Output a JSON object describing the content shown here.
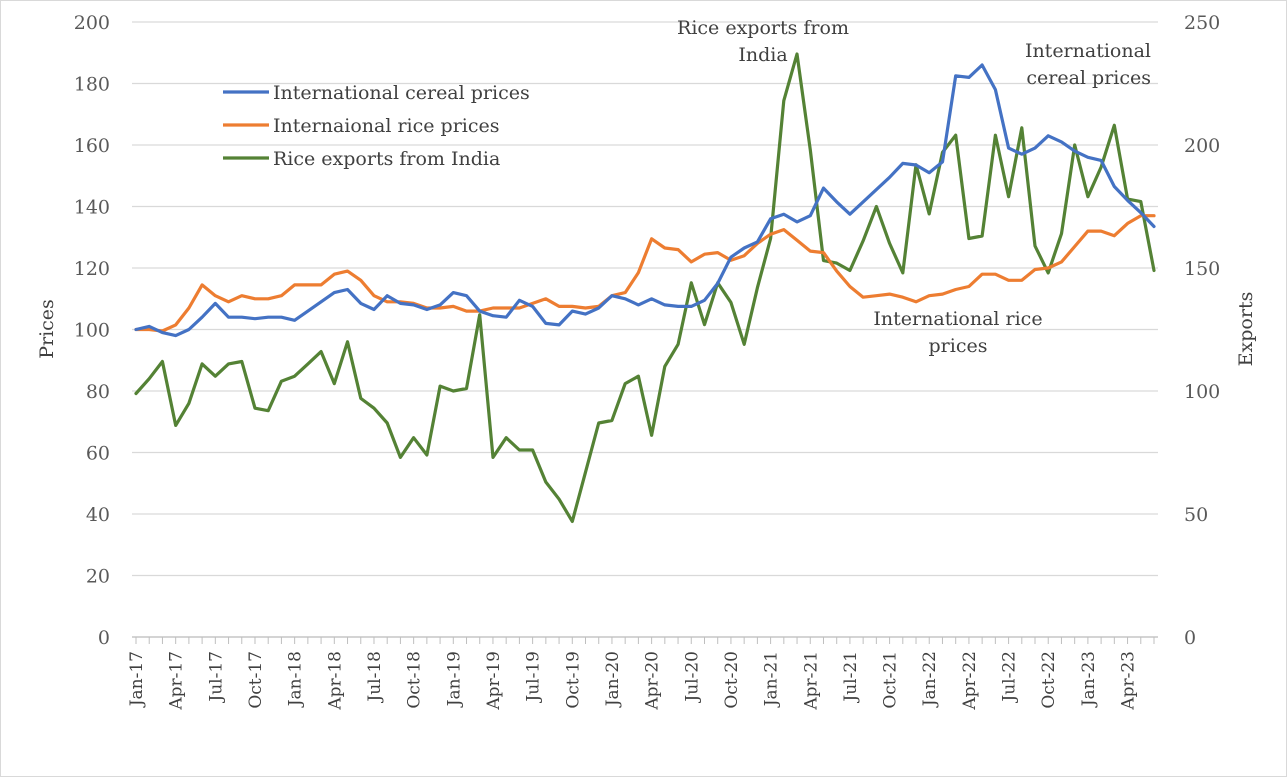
{
  "chart_data": {
    "type": "line",
    "ylabel": "Prices",
    "y2label": "Exports",
    "ylim": [
      0,
      200
    ],
    "y2lim": [
      0,
      250
    ],
    "yticks": [
      "0",
      "20",
      "40",
      "60",
      "80",
      "100",
      "120",
      "140",
      "160",
      "180",
      "200"
    ],
    "y2ticks": [
      "0",
      "50",
      "100",
      "150",
      "200",
      "250"
    ],
    "grid": true,
    "legend_position": "top-left",
    "x": [
      "Jan-17",
      "Feb-17",
      "Mar-17",
      "Apr-17",
      "May-17",
      "Jun-17",
      "Jul-17",
      "Aug-17",
      "Sep-17",
      "Oct-17",
      "Nov-17",
      "Dec-17",
      "Jan-18",
      "Feb-18",
      "Mar-18",
      "Apr-18",
      "May-18",
      "Jun-18",
      "Jul-18",
      "Aug-18",
      "Sep-18",
      "Oct-18",
      "Nov-18",
      "Dec-18",
      "Jan-19",
      "Feb-19",
      "Mar-19",
      "Apr-19",
      "May-19",
      "Jun-19",
      "Jul-19",
      "Aug-19",
      "Sep-19",
      "Oct-19",
      "Nov-19",
      "Dec-19",
      "Jan-20",
      "Feb-20",
      "Mar-20",
      "Apr-20",
      "May-20",
      "Jun-20",
      "Jul-20",
      "Aug-20",
      "Sep-20",
      "Oct-20",
      "Nov-20",
      "Dec-20",
      "Jan-21",
      "Feb-21",
      "Mar-21",
      "Apr-21",
      "May-21",
      "Jun-21",
      "Jul-21",
      "Aug-21",
      "Sep-21",
      "Oct-21",
      "Nov-21",
      "Dec-21",
      "Jan-22",
      "Feb-22",
      "Mar-22",
      "Apr-22",
      "May-22",
      "Jun-22",
      "Jul-22",
      "Aug-22",
      "Sep-22",
      "Oct-22",
      "Nov-22",
      "Dec-22",
      "Jan-23",
      "Feb-23",
      "Mar-23",
      "Apr-23",
      "May-23",
      "Jun-23"
    ],
    "xtick_labels": [
      "Jan-17",
      "Apr-17",
      "Jul-17",
      "Oct-17",
      "Jan-18",
      "Apr-18",
      "Jul-18",
      "Oct-18",
      "Jan-19",
      "Apr-19",
      "Jul-19",
      "Oct-19",
      "Jan-20",
      "Apr-20",
      "Jul-20",
      "Oct-20",
      "Jan-21",
      "Apr-21",
      "Jul-21",
      "Oct-21",
      "Jan-22",
      "Apr-22",
      "Jul-22",
      "Oct-22",
      "Jan-23",
      "Apr-23"
    ],
    "series": [
      {
        "name": "International cereal prices",
        "axis": "left",
        "color": "#4472C4",
        "values": [
          100,
          101,
          99,
          98,
          100,
          104,
          108.5,
          104,
          104,
          103.5,
          104,
          104,
          103,
          106,
          109,
          112,
          113,
          108.5,
          106.5,
          111,
          108.5,
          108,
          106.5,
          108,
          112,
          111,
          106,
          104.5,
          104,
          109.5,
          107.5,
          102,
          101.5,
          106,
          105,
          107,
          111,
          110,
          108,
          110,
          108,
          107.5,
          107.5,
          109.5,
          115,
          123.5,
          126.5,
          128.5,
          136,
          137.5,
          135,
          137,
          146,
          141.5,
          137.5,
          141.5,
          145.5,
          149.5,
          154,
          153.5,
          151,
          154.5,
          182.5,
          182,
          186,
          178,
          159,
          157,
          159,
          163,
          161,
          158,
          156,
          155,
          146.5,
          142,
          138,
          133.5
        ]
      },
      {
        "name": "Internaional rice prices",
        "axis": "left",
        "color": "#ED7D31",
        "values": [
          100,
          100,
          99.5,
          101.5,
          107,
          114.5,
          111,
          109,
          111,
          110,
          110,
          111,
          114.5,
          114.5,
          114.5,
          118,
          119,
          116,
          111,
          109,
          109,
          108.5,
          107,
          107,
          107.5,
          106,
          106,
          107,
          107,
          107,
          108.5,
          110,
          107.5,
          107.5,
          107,
          107.5,
          111,
          112,
          118.5,
          129.5,
          126.5,
          126,
          122,
          124.5,
          125,
          122.5,
          124,
          128,
          131,
          132.5,
          129,
          125.5,
          125,
          119,
          114,
          110.5,
          111,
          111.5,
          110.5,
          109,
          111,
          111.5,
          113,
          114,
          118,
          118,
          116,
          116,
          119.5,
          120,
          122,
          127,
          132,
          132,
          130.5,
          134.5,
          137,
          137
        ]
      },
      {
        "name": "Rice exports from India",
        "axis": "right",
        "color": "#548235",
        "values": [
          99,
          105,
          112,
          86,
          95,
          111,
          106,
          111,
          112,
          93,
          92,
          104,
          106,
          111,
          116,
          103,
          120,
          97,
          93,
          87,
          73,
          81,
          74,
          102,
          100,
          101,
          131,
          73,
          81,
          76,
          76,
          63,
          56,
          47,
          67,
          87,
          88,
          103,
          106,
          82,
          110,
          119,
          144,
          127,
          144,
          136,
          119,
          142,
          162,
          218,
          237,
          198,
          153,
          152,
          149,
          161,
          175,
          160,
          148,
          192,
          172,
          197,
          204,
          162,
          163,
          204,
          179,
          207,
          159,
          148,
          164,
          200,
          179,
          191,
          208,
          178,
          177,
          149
        ]
      }
    ],
    "annotations": [
      {
        "lines": [
          "Rice exports from",
          "India"
        ],
        "series": "Rice exports from India"
      },
      {
        "lines": [
          "International",
          "cereal prices"
        ],
        "series": "International cereal prices"
      },
      {
        "lines": [
          "International rice",
          "prices"
        ],
        "series": "Internaional rice prices"
      }
    ]
  }
}
